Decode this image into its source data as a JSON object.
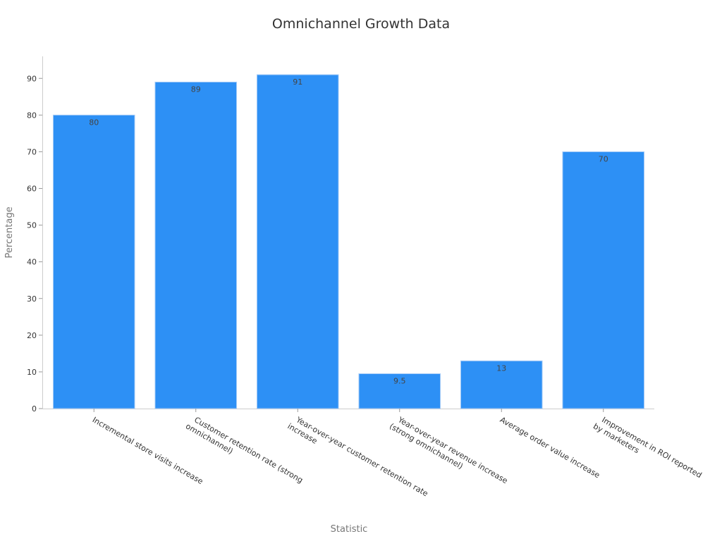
{
  "chart_data": {
    "type": "bar",
    "title": "Omnichannel Growth Data",
    "xlabel": "Statistic",
    "ylabel": "Percentage",
    "ylim": [
      0,
      96
    ],
    "yticks": [
      0,
      10,
      20,
      30,
      40,
      50,
      60,
      70,
      80,
      90
    ],
    "grid": false,
    "categories": [
      [
        "Incremental store visits increase"
      ],
      [
        "Customer retention rate (strong",
        "omnichannel)"
      ],
      [
        "Year-over-year customer retention rate",
        "increase"
      ],
      [
        "Year-over-year revenue increase",
        "(strong omnichannel)"
      ],
      [
        "Average order value increase"
      ],
      [
        "Improvement in ROI reported",
        "by marketers"
      ]
    ],
    "values": [
      80,
      89,
      91,
      9.5,
      13,
      70
    ],
    "value_labels": [
      "80",
      "89",
      "91",
      "9.5",
      "13",
      "70"
    ],
    "bar_color": "#2d90f5",
    "bar_edge_color": "#a9cdf7"
  }
}
